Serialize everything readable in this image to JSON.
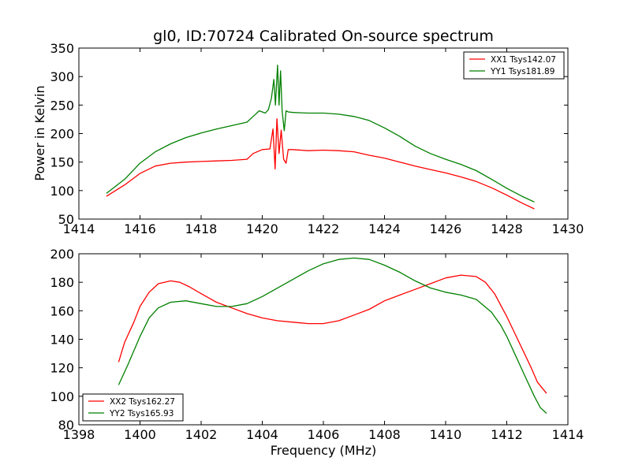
{
  "chart_data": [
    {
      "type": "line",
      "title": "gl0, ID:70724 Calibrated On-source spectrum",
      "xlabel": "",
      "ylabel": "Power in Kelvin",
      "xlim": [
        1414,
        1430
      ],
      "ylim": [
        50,
        350
      ],
      "xticks": [
        1414,
        1416,
        1418,
        1420,
        1422,
        1424,
        1426,
        1428,
        1430
      ],
      "yticks": [
        50,
        100,
        150,
        200,
        250,
        300,
        350
      ],
      "grid": false,
      "legend_position": "top-right",
      "series": [
        {
          "name": "XX1 Tsys142.07",
          "color": "#ff0000",
          "x": [
            1414.9,
            1415.5,
            1416.0,
            1416.5,
            1417.0,
            1417.5,
            1418.0,
            1418.5,
            1419.0,
            1419.5,
            1419.7,
            1420.0,
            1420.25,
            1420.35,
            1420.42,
            1420.48,
            1420.55,
            1420.62,
            1420.7,
            1420.78,
            1420.85,
            1421.0,
            1421.5,
            1422.0,
            1422.5,
            1423.0,
            1423.5,
            1424.0,
            1424.5,
            1425.0,
            1425.5,
            1426.0,
            1426.5,
            1427.0,
            1427.5,
            1428.0,
            1428.5,
            1428.9
          ],
          "y": [
            90,
            110,
            130,
            143,
            148,
            150,
            151,
            152,
            153,
            155,
            165,
            172,
            173,
            208,
            138,
            226,
            165,
            206,
            155,
            148,
            172,
            172,
            170,
            171,
            170,
            168,
            162,
            157,
            150,
            143,
            137,
            131,
            124,
            116,
            105,
            92,
            78,
            68
          ]
        },
        {
          "name": "YY1 Tsys181.89",
          "color": "#008000",
          "x": [
            1414.9,
            1415.5,
            1416.0,
            1416.5,
            1417.0,
            1417.5,
            1418.0,
            1418.5,
            1419.0,
            1419.5,
            1419.7,
            1419.9,
            1420.1,
            1420.2,
            1420.3,
            1420.38,
            1420.43,
            1420.5,
            1420.55,
            1420.6,
            1420.65,
            1420.72,
            1420.78,
            1420.85,
            1421.0,
            1421.5,
            1422.0,
            1422.5,
            1423.0,
            1423.5,
            1424.0,
            1424.5,
            1425.0,
            1425.5,
            1426.0,
            1426.5,
            1427.0,
            1427.5,
            1428.0,
            1428.5,
            1428.9
          ],
          "y": [
            95,
            120,
            148,
            168,
            182,
            193,
            201,
            208,
            214,
            220,
            230,
            240,
            236,
            242,
            262,
            295,
            250,
            320,
            250,
            310,
            240,
            205,
            240,
            238,
            237,
            236,
            236,
            234,
            230,
            223,
            210,
            195,
            178,
            165,
            155,
            146,
            135,
            120,
            104,
            90,
            80
          ]
        }
      ]
    },
    {
      "type": "line",
      "title": "",
      "xlabel": "Frequency (MHz)",
      "ylabel": "",
      "xlim": [
        1398,
        1414
      ],
      "ylim": [
        80,
        200
      ],
      "xticks": [
        1398,
        1400,
        1402,
        1404,
        1406,
        1408,
        1410,
        1412,
        1414
      ],
      "yticks": [
        80,
        100,
        120,
        140,
        160,
        180,
        200
      ],
      "grid": false,
      "legend_position": "bottom-left",
      "series": [
        {
          "name": "XX2 Tsys162.27",
          "color": "#ff0000",
          "x": [
            1399.3,
            1399.5,
            1399.8,
            1400.0,
            1400.3,
            1400.6,
            1401.0,
            1401.3,
            1401.6,
            1402.0,
            1402.5,
            1403.0,
            1403.5,
            1404.0,
            1404.5,
            1405.0,
            1405.5,
            1406.0,
            1406.5,
            1407.0,
            1407.5,
            1408.0,
            1408.5,
            1409.0,
            1409.5,
            1410.0,
            1410.5,
            1411.0,
            1411.3,
            1411.6,
            1412.0,
            1412.4,
            1412.8,
            1413.0,
            1413.3
          ],
          "y": [
            124,
            138,
            152,
            163,
            173,
            179,
            181,
            180,
            177,
            172,
            166,
            162,
            158,
            155,
            153,
            152,
            151,
            151,
            153,
            157,
            161,
            167,
            171,
            175,
            179,
            183,
            185,
            184,
            180,
            172,
            156,
            138,
            120,
            110,
            102
          ]
        },
        {
          "name": "YY2 Tsys165.93",
          "color": "#008000",
          "x": [
            1399.3,
            1399.6,
            1400.0,
            1400.3,
            1400.6,
            1401.0,
            1401.5,
            1402.0,
            1402.5,
            1403.0,
            1403.5,
            1404.0,
            1404.5,
            1405.0,
            1405.5,
            1406.0,
            1406.5,
            1407.0,
            1407.5,
            1408.0,
            1408.5,
            1409.0,
            1409.5,
            1410.0,
            1410.5,
            1411.0,
            1411.5,
            1411.8,
            1412.0,
            1412.3,
            1412.6,
            1412.9,
            1413.1,
            1413.3
          ],
          "y": [
            108,
            122,
            142,
            155,
            162,
            166,
            167,
            165,
            163,
            163,
            165,
            170,
            176,
            182,
            188,
            193,
            196,
            197,
            196,
            192,
            187,
            181,
            176,
            173,
            171,
            168,
            159,
            150,
            142,
            128,
            114,
            100,
            92,
            88
          ]
        }
      ]
    }
  ]
}
